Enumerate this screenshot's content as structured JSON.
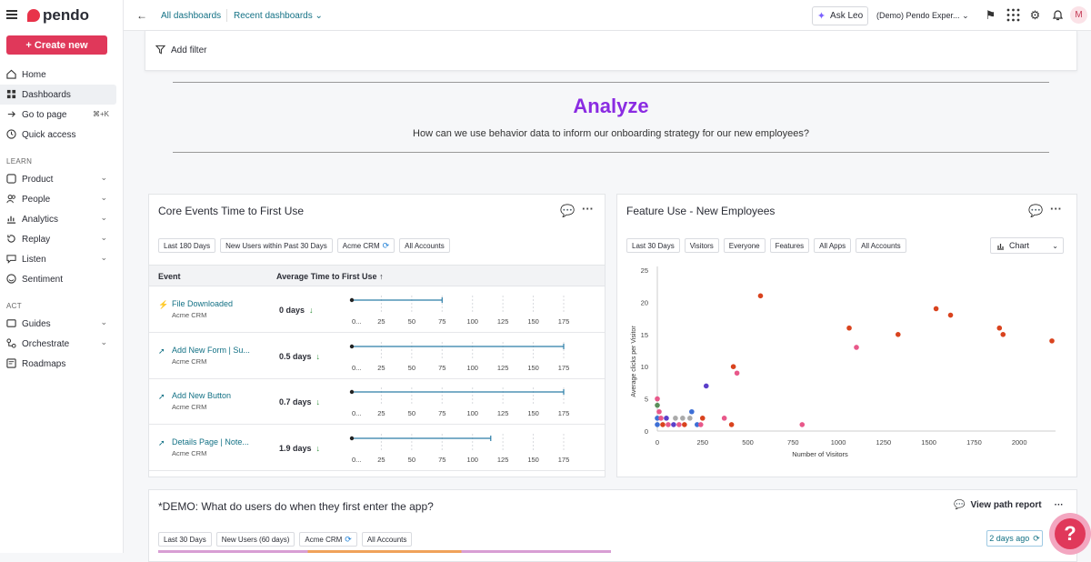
{
  "brand": "pendo",
  "sidebar": {
    "create_label": "+ Create new",
    "items_top": [
      {
        "label": "Home",
        "icon": "home-icon"
      },
      {
        "label": "Dashboards",
        "icon": "dashboard-icon"
      },
      {
        "label": "Go to page",
        "icon": "goto-icon",
        "shortcut": "⌘+K"
      },
      {
        "label": "Quick access",
        "icon": "clock-icon"
      }
    ],
    "learn_label": "LEARN",
    "items_learn": [
      {
        "label": "Product",
        "icon": "product-icon"
      },
      {
        "label": "People",
        "icon": "people-icon"
      },
      {
        "label": "Analytics",
        "icon": "analytics-icon"
      },
      {
        "label": "Replay",
        "icon": "replay-icon"
      },
      {
        "label": "Listen",
        "icon": "listen-icon"
      },
      {
        "label": "Sentiment",
        "icon": "sentiment-icon"
      }
    ],
    "act_label": "ACT",
    "items_act": [
      {
        "label": "Guides",
        "icon": "guides-icon"
      },
      {
        "label": "Orchestrate",
        "icon": "orchestrate-icon"
      },
      {
        "label": "Roadmaps",
        "icon": "roadmaps-icon"
      }
    ]
  },
  "topbar": {
    "crumb_all": "All dashboards",
    "crumb_recent": "Recent dashboards",
    "ask_leo": "Ask Leo",
    "account": "(Demo) Pendo Exper...",
    "avatar_initial": "M"
  },
  "filter": {
    "add_filter": "Add filter"
  },
  "header": {
    "title": "Analyze",
    "subtitle": "How can we use behavior data to inform our onboarding strategy for our new employees?"
  },
  "core_events": {
    "title": "Core Events Time to First Use",
    "chips": [
      "Last 180 Days",
      "New Users within Past 30 Days",
      "Acme CRM",
      "All Accounts"
    ],
    "col_event": "Event",
    "col_avg": "Average Time to First Use",
    "axis_ticks": [
      "0...",
      "25",
      "50",
      "75",
      "100",
      "125",
      "150",
      "175"
    ],
    "rows": [
      {
        "event": "File Downloaded",
        "app": "Acme CRM",
        "value": "0 days",
        "range_end": 75
      },
      {
        "event": "Add New Form | Su...",
        "app": "Acme CRM",
        "value": "0.5 days",
        "range_end": 175
      },
      {
        "event": "Add New Button",
        "app": "Acme CRM",
        "value": "0.7 days",
        "range_end": 175
      },
      {
        "event": "Details Page | Note...",
        "app": "Acme CRM",
        "value": "1.9 days",
        "range_end": 115
      }
    ]
  },
  "feature_use": {
    "title": "Feature Use - New Employees",
    "chips": [
      "Last 30 Days",
      "Visitors",
      "Everyone",
      "Features",
      "All Apps",
      "All Accounts"
    ],
    "view_label": "Chart"
  },
  "chart_data": {
    "type": "scatter",
    "xlabel": "Number of Visitors",
    "ylabel": "Average clicks per Visitor",
    "xlim": [
      0,
      2200
    ],
    "ylim": [
      0,
      25
    ],
    "x_ticks": [
      0,
      250,
      500,
      750,
      1000,
      1250,
      1500,
      1750,
      2000
    ],
    "y_ticks": [
      0,
      5,
      10,
      15,
      20,
      25
    ],
    "points": [
      {
        "x": 570,
        "y": 21,
        "color": "#d9431e"
      },
      {
        "x": 1060,
        "y": 16,
        "color": "#d9431e"
      },
      {
        "x": 1100,
        "y": 13,
        "color": "#e8588a"
      },
      {
        "x": 1330,
        "y": 15,
        "color": "#d9431e"
      },
      {
        "x": 1540,
        "y": 19,
        "color": "#d9431e"
      },
      {
        "x": 1620,
        "y": 18,
        "color": "#d9431e"
      },
      {
        "x": 1890,
        "y": 16,
        "color": "#d9431e"
      },
      {
        "x": 1910,
        "y": 15,
        "color": "#d9431e"
      },
      {
        "x": 2180,
        "y": 14,
        "color": "#d9431e"
      },
      {
        "x": 420,
        "y": 10,
        "color": "#d9431e"
      },
      {
        "x": 440,
        "y": 9,
        "color": "#e8588a"
      },
      {
        "x": 270,
        "y": 7,
        "color": "#5b3fc9"
      },
      {
        "x": 0,
        "y": 5,
        "color": "#e8588a"
      },
      {
        "x": 0,
        "y": 4,
        "color": "#5a8f5a"
      },
      {
        "x": 10,
        "y": 3,
        "color": "#e8588a"
      },
      {
        "x": 190,
        "y": 3,
        "color": "#3d6fd6"
      },
      {
        "x": 0,
        "y": 2,
        "color": "#3d6fd6"
      },
      {
        "x": 20,
        "y": 2,
        "color": "#e8588a"
      },
      {
        "x": 50,
        "y": 2,
        "color": "#5b3fc9"
      },
      {
        "x": 100,
        "y": 2,
        "color": "#aaaaaa"
      },
      {
        "x": 140,
        "y": 2,
        "color": "#aaaaaa"
      },
      {
        "x": 180,
        "y": 2,
        "color": "#aaaaaa"
      },
      {
        "x": 250,
        "y": 2,
        "color": "#d9431e"
      },
      {
        "x": 370,
        "y": 2,
        "color": "#e8588a"
      },
      {
        "x": 0,
        "y": 1,
        "color": "#3d6fd6"
      },
      {
        "x": 30,
        "y": 1,
        "color": "#d9431e"
      },
      {
        "x": 60,
        "y": 1,
        "color": "#e8588a"
      },
      {
        "x": 90,
        "y": 1,
        "color": "#5b3fc9"
      },
      {
        "x": 120,
        "y": 1,
        "color": "#e8588a"
      },
      {
        "x": 150,
        "y": 1,
        "color": "#d9431e"
      },
      {
        "x": 220,
        "y": 1,
        "color": "#3d6fd6"
      },
      {
        "x": 240,
        "y": 1,
        "color": "#e8588a"
      },
      {
        "x": 410,
        "y": 1,
        "color": "#d9431e"
      },
      {
        "x": 800,
        "y": 1,
        "color": "#e8588a"
      }
    ]
  },
  "path_card": {
    "title": "*DEMO: What do users do when they first enter the app?",
    "view_path": "View path report",
    "chips": [
      "Last 30 Days",
      "New Users (60 days)",
      "Acme CRM",
      "All Accounts"
    ],
    "updated": "2 days ago"
  },
  "colors": {
    "accent": "#e0385a",
    "link": "#137185",
    "title": "#8a2be2"
  }
}
